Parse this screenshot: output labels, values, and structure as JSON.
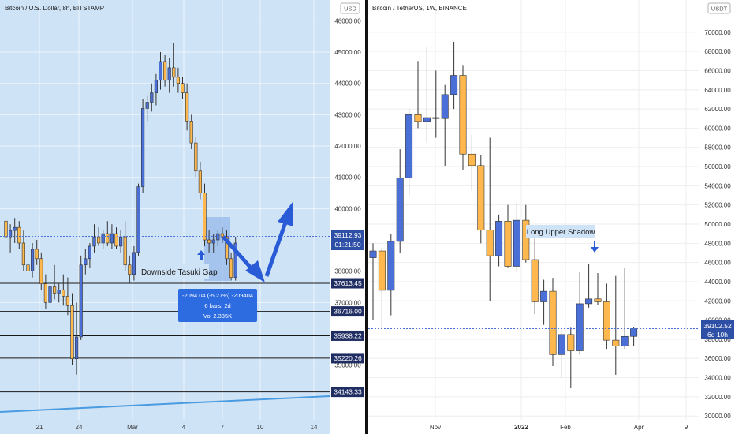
{
  "colors": {
    "up": "#4a6fd6",
    "down": "#ffb84d",
    "wick": "#333333",
    "highlight_bg": "#cfe3f7",
    "line": "#1a1a1a",
    "price_label_bg": "#1f2d63",
    "current_price_bg": "#2d4fa6",
    "arrow": "#2a5bd7",
    "trendline": "#4a9be0"
  },
  "left": {
    "title": "Bitcoin / U.S. Dollar, 8h, BITSTAMP",
    "currency": "USD",
    "annotation": "Downside Tasuki Gap",
    "measure": {
      "line1": "-2094.04 (-5.27%) -209404",
      "line2": "6 bars, 2d",
      "line3": "Vol 2.335K"
    },
    "current_price": "39112.93",
    "countdown": "01:21:50",
    "levels": [
      {
        "label": "37613.45",
        "value": 37613.45
      },
      {
        "label": "36716.00",
        "value": 36716.0
      },
      {
        "label": "35938.22",
        "value": 35938.22
      },
      {
        "label": "35220.26",
        "value": 35220.26
      },
      {
        "label": "34143.33",
        "value": 34143.33
      }
    ],
    "y_ticks": [
      "46000.00",
      "45000.00",
      "44000.00",
      "43000.00",
      "42000.00",
      "41000.00",
      "40000.00",
      "38000.00",
      "37000.00",
      "35000.00"
    ],
    "x_ticks": [
      "21",
      "24",
      "Mar",
      "4",
      "7",
      "10",
      "14"
    ]
  },
  "right": {
    "title": "Bitcoin / TetherUS, 1W, BINANCE",
    "currency": "USDT",
    "annotation": "Long Upper Shadow",
    "current_price": "39102.52",
    "countdown": "6d 10h",
    "y_ticks": [
      "70000.00",
      "68000.00",
      "66000.00",
      "64000.00",
      "62000.00",
      "60000.00",
      "58000.00",
      "56000.00",
      "54000.00",
      "52000.00",
      "50000.00",
      "48000.00",
      "46000.00",
      "44000.00",
      "42000.00",
      "40000.00",
      "38000.00",
      "36000.00",
      "34000.00",
      "32000.00",
      "30000.00"
    ],
    "x_ticks": [
      "Nov",
      "2022",
      "Feb",
      "Apr",
      "9"
    ]
  },
  "chart_data": [
    {
      "type": "candlestick",
      "title": "Bitcoin / U.S. Dollar, 8h, BITSTAMP",
      "ylabel": "USD",
      "ylim": [
        34000,
        46400
      ],
      "x_ticks": [
        "21",
        "24",
        "Mar",
        "4",
        "7",
        "10",
        "14"
      ],
      "candles": [
        {
          "o": 39600,
          "h": 39800,
          "l": 38800,
          "c": 39100
        },
        {
          "o": 39100,
          "h": 39500,
          "l": 38600,
          "c": 39300
        },
        {
          "o": 39300,
          "h": 39700,
          "l": 38900,
          "c": 39400
        },
        {
          "o": 39400,
          "h": 39600,
          "l": 38700,
          "c": 38900
        },
        {
          "o": 38900,
          "h": 39300,
          "l": 38000,
          "c": 38200
        },
        {
          "o": 38200,
          "h": 38500,
          "l": 37700,
          "c": 38000
        },
        {
          "o": 38000,
          "h": 38900,
          "l": 37800,
          "c": 38700
        },
        {
          "o": 38700,
          "h": 39000,
          "l": 38200,
          "c": 38400
        },
        {
          "o": 38400,
          "h": 38600,
          "l": 37400,
          "c": 37600
        },
        {
          "o": 37600,
          "h": 37900,
          "l": 36800,
          "c": 37000
        },
        {
          "o": 37000,
          "h": 37700,
          "l": 36500,
          "c": 37500
        },
        {
          "o": 37500,
          "h": 38200,
          "l": 37100,
          "c": 37300
        },
        {
          "o": 37300,
          "h": 37600,
          "l": 37000,
          "c": 37400
        },
        {
          "o": 37400,
          "h": 37900,
          "l": 36900,
          "c": 37200
        },
        {
          "o": 37200,
          "h": 37800,
          "l": 36600,
          "c": 36900
        },
        {
          "o": 36900,
          "h": 37300,
          "l": 35000,
          "c": 35200
        },
        {
          "o": 35200,
          "h": 37000,
          "l": 34700,
          "c": 35900
        },
        {
          "o": 35900,
          "h": 38500,
          "l": 35800,
          "c": 38200
        },
        {
          "o": 38200,
          "h": 38700,
          "l": 37900,
          "c": 38400
        },
        {
          "o": 38400,
          "h": 38900,
          "l": 38100,
          "c": 38800
        },
        {
          "o": 38800,
          "h": 39500,
          "l": 38600,
          "c": 39100
        },
        {
          "o": 39100,
          "h": 39400,
          "l": 38800,
          "c": 38900
        },
        {
          "o": 38900,
          "h": 39300,
          "l": 38700,
          "c": 39200
        },
        {
          "o": 39200,
          "h": 39600,
          "l": 38800,
          "c": 38900
        },
        {
          "o": 38900,
          "h": 39500,
          "l": 38700,
          "c": 39200
        },
        {
          "o": 39200,
          "h": 39400,
          "l": 38700,
          "c": 38800
        },
        {
          "o": 38800,
          "h": 39300,
          "l": 38600,
          "c": 39100
        },
        {
          "o": 39100,
          "h": 39600,
          "l": 38000,
          "c": 38200
        },
        {
          "o": 38200,
          "h": 38500,
          "l": 37600,
          "c": 37900
        },
        {
          "o": 37900,
          "h": 38800,
          "l": 37700,
          "c": 38600
        },
        {
          "o": 38600,
          "h": 40800,
          "l": 38500,
          "c": 40700
        },
        {
          "o": 40700,
          "h": 43500,
          "l": 40500,
          "c": 43200
        },
        {
          "o": 43200,
          "h": 43600,
          "l": 42800,
          "c": 43400
        },
        {
          "o": 43400,
          "h": 44000,
          "l": 43100,
          "c": 43700
        },
        {
          "o": 43700,
          "h": 44300,
          "l": 43300,
          "c": 44100
        },
        {
          "o": 44100,
          "h": 45000,
          "l": 43800,
          "c": 44700
        },
        {
          "o": 44700,
          "h": 44900,
          "l": 43900,
          "c": 44100
        },
        {
          "o": 44100,
          "h": 44800,
          "l": 43700,
          "c": 44500
        },
        {
          "o": 44500,
          "h": 45300,
          "l": 43900,
          "c": 44200
        },
        {
          "o": 44200,
          "h": 44500,
          "l": 43700,
          "c": 44000
        },
        {
          "o": 44000,
          "h": 44200,
          "l": 43500,
          "c": 43700
        },
        {
          "o": 43700,
          "h": 44000,
          "l": 42500,
          "c": 42800
        },
        {
          "o": 42800,
          "h": 43000,
          "l": 41900,
          "c": 42100
        },
        {
          "o": 42100,
          "h": 42300,
          "l": 41000,
          "c": 41200
        },
        {
          "o": 41200,
          "h": 41500,
          "l": 40300,
          "c": 40500
        },
        {
          "o": 40500,
          "h": 40800,
          "l": 38800,
          "c": 39000
        },
        {
          "o": 39000,
          "h": 39300,
          "l": 38600,
          "c": 38900
        },
        {
          "o": 38900,
          "h": 39200,
          "l": 38600,
          "c": 39000
        },
        {
          "o": 39000,
          "h": 39300,
          "l": 38800,
          "c": 39200
        },
        {
          "o": 39200,
          "h": 39400,
          "l": 38900,
          "c": 39100
        },
        {
          "o": 39100,
          "h": 39300,
          "l": 38200,
          "c": 38400
        },
        {
          "o": 38400,
          "h": 38600,
          "l": 37700,
          "c": 37800
        },
        {
          "o": 37800,
          "h": 39100,
          "l": 37700,
          "c": 38900
        }
      ],
      "levels": [
        37613.45,
        36716.0,
        35938.22,
        35220.26,
        34143.33
      ],
      "current_price": 39112.93
    },
    {
      "type": "candlestick",
      "title": "Bitcoin / TetherUS, 1W, BINANCE",
      "ylabel": "USDT",
      "ylim": [
        29500,
        71500
      ],
      "x_ticks": [
        "Nov",
        "2022",
        "Feb",
        "Apr",
        "9"
      ],
      "candles": [
        {
          "o": 46500,
          "h": 48000,
          "l": 40000,
          "c": 47200
        },
        {
          "o": 47200,
          "h": 47600,
          "l": 39000,
          "c": 43100
        },
        {
          "o": 43100,
          "h": 49000,
          "l": 40500,
          "c": 48200
        },
        {
          "o": 48200,
          "h": 57800,
          "l": 47000,
          "c": 54800
        },
        {
          "o": 54800,
          "h": 62000,
          "l": 53000,
          "c": 61400
        },
        {
          "o": 61400,
          "h": 67000,
          "l": 60000,
          "c": 60700
        },
        {
          "o": 60700,
          "h": 68500,
          "l": 58500,
          "c": 61100
        },
        {
          "o": 61100,
          "h": 66000,
          "l": 59000,
          "c": 61000
        },
        {
          "o": 61000,
          "h": 64500,
          "l": 56000,
          "c": 63500
        },
        {
          "o": 63500,
          "h": 69000,
          "l": 62000,
          "c": 65500
        },
        {
          "o": 65500,
          "h": 66500,
          "l": 55600,
          "c": 57300
        },
        {
          "o": 57300,
          "h": 59300,
          "l": 53500,
          "c": 56100
        },
        {
          "o": 56100,
          "h": 57200,
          "l": 48000,
          "c": 49400
        },
        {
          "o": 49400,
          "h": 59000,
          "l": 42000,
          "c": 46700
        },
        {
          "o": 46700,
          "h": 51000,
          "l": 45600,
          "c": 50300
        },
        {
          "o": 50300,
          "h": 52000,
          "l": 45500,
          "c": 45600
        },
        {
          "o": 45600,
          "h": 52200,
          "l": 45000,
          "c": 50400
        },
        {
          "o": 50400,
          "h": 52000,
          "l": 46000,
          "c": 46300
        },
        {
          "o": 46300,
          "h": 48500,
          "l": 40600,
          "c": 41900
        },
        {
          "o": 41900,
          "h": 44200,
          "l": 39500,
          "c": 43000
        },
        {
          "o": 43000,
          "h": 44400,
          "l": 35200,
          "c": 36400
        },
        {
          "o": 36400,
          "h": 39000,
          "l": 34000,
          "c": 38500
        },
        {
          "o": 38500,
          "h": 39200,
          "l": 32900,
          "c": 36800
        },
        {
          "o": 36800,
          "h": 45000,
          "l": 36400,
          "c": 41700
        },
        {
          "o": 41700,
          "h": 45800,
          "l": 41300,
          "c": 42200
        },
        {
          "o": 42200,
          "h": 44900,
          "l": 41600,
          "c": 41900
        },
        {
          "o": 41900,
          "h": 43800,
          "l": 37000,
          "c": 37900
        },
        {
          "o": 37900,
          "h": 44600,
          "l": 34300,
          "c": 37300
        },
        {
          "o": 37300,
          "h": 45400,
          "l": 37000,
          "c": 38300
        },
        {
          "o": 38300,
          "h": 39300,
          "l": 37300,
          "c": 39100
        }
      ],
      "current_price": 39102.52
    }
  ]
}
